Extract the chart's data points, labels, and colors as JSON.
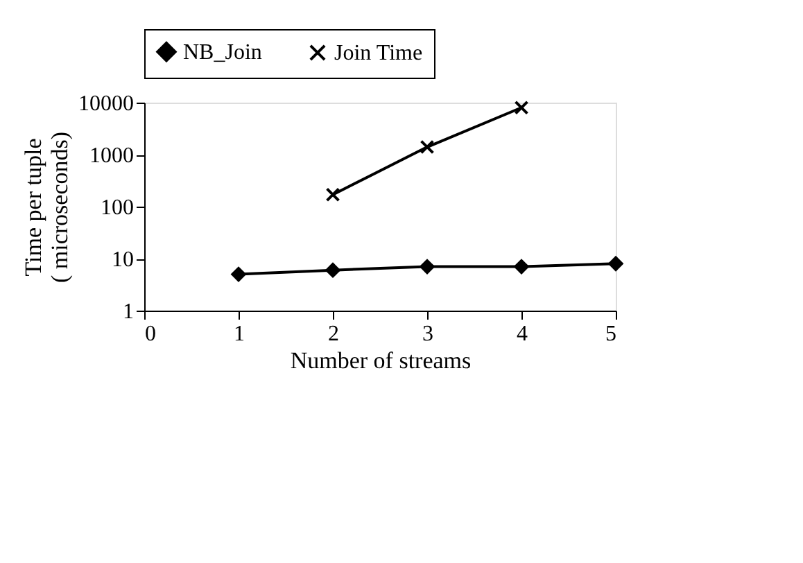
{
  "chart_data": {
    "type": "line",
    "xlabel": "Number of streams",
    "ylabel": "Time per tuple ( microseconds)",
    "x": [
      1,
      2,
      3,
      4,
      5
    ],
    "series": [
      {
        "name": "NB_Join",
        "color": "#000000",
        "marker": "diamond",
        "values": [
          5,
          6,
          7,
          7,
          8
        ]
      },
      {
        "name": "Join Time",
        "color": "#000000",
        "marker": "cross",
        "values": [
          null,
          170,
          1400,
          8000,
          null
        ]
      }
    ],
    "log": "y",
    "xlim": [
      0,
      5
    ],
    "xticks": [
      0,
      1,
      2,
      3,
      4,
      5
    ],
    "ylim": [
      1,
      10000
    ],
    "yticks": [
      1,
      10,
      100,
      1000,
      10000
    ],
    "grid": false,
    "legend": "top"
  }
}
